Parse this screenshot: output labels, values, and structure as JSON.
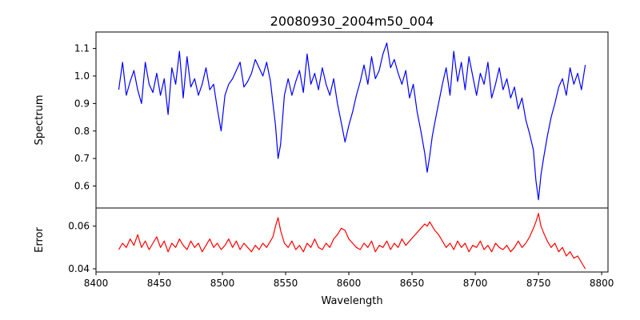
{
  "figure": {
    "title": "20080930_2004m50_004"
  },
  "chart_data": [
    {
      "type": "line",
      "panel": "top",
      "title": "20080930_2004m50_004",
      "xlabel": "",
      "ylabel": "Spectrum",
      "xlim": [
        8400,
        8805
      ],
      "ylim": [
        0.52,
        1.16
      ],
      "xticks": [],
      "yticks": [
        0.6,
        0.7,
        0.8,
        0.9,
        1.0,
        1.1
      ],
      "ytick_labels": [
        "0.6",
        "0.7",
        "0.8",
        "0.9",
        "1.0",
        "1.1"
      ],
      "grid": false,
      "series": [
        {
          "color": "#0000ff",
          "x": [
            8418,
            8421,
            8424,
            8427,
            8430,
            8433,
            8436,
            8439,
            8442,
            8445,
            8448,
            8451,
            8454,
            8457,
            8460,
            8463,
            8466,
            8469,
            8472,
            8475,
            8478,
            8481,
            8484,
            8487,
            8490,
            8493,
            8496,
            8499,
            8502,
            8505,
            8508,
            8511,
            8514,
            8517,
            8520,
            8523,
            8526,
            8529,
            8532,
            8535,
            8538,
            8540,
            8542,
            8544,
            8546,
            8549,
            8552,
            8555,
            8558,
            8561,
            8564,
            8567,
            8570,
            8573,
            8576,
            8579,
            8582,
            8585,
            8588,
            8591,
            8594,
            8597,
            8600,
            8603,
            8606,
            8609,
            8612,
            8615,
            8618,
            8621,
            8624,
            8627,
            8630,
            8633,
            8636,
            8639,
            8642,
            8645,
            8648,
            8651,
            8654,
            8657,
            8660,
            8662,
            8664,
            8666,
            8668,
            8671,
            8674,
            8677,
            8680,
            8683,
            8686,
            8689,
            8692,
            8695,
            8698,
            8701,
            8704,
            8707,
            8710,
            8713,
            8716,
            8719,
            8722,
            8725,
            8728,
            8731,
            8734,
            8737,
            8740,
            8743,
            8746,
            8748,
            8750,
            8752,
            8754,
            8757,
            8760,
            8763,
            8766,
            8769,
            8772,
            8775,
            8778,
            8781,
            8784,
            8787
          ],
          "y": [
            0.95,
            1.05,
            0.93,
            0.98,
            1.02,
            0.95,
            0.9,
            1.05,
            0.97,
            0.94,
            1.01,
            0.93,
            0.99,
            0.86,
            1.03,
            0.97,
            1.09,
            0.92,
            1.07,
            0.96,
            0.99,
            0.93,
            0.97,
            1.03,
            0.95,
            0.97,
            0.88,
            0.8,
            0.93,
            0.97,
            0.99,
            1.02,
            1.05,
            0.96,
            0.98,
            1.01,
            1.06,
            1.03,
            1.0,
            1.05,
            0.98,
            0.9,
            0.82,
            0.7,
            0.75,
            0.93,
            0.99,
            0.93,
            0.98,
            1.02,
            0.94,
            1.08,
            0.97,
            1.01,
            0.95,
            1.03,
            0.97,
            0.93,
            0.99,
            0.9,
            0.83,
            0.76,
            0.82,
            0.87,
            0.93,
            0.98,
            1.04,
            0.97,
            1.07,
            0.99,
            1.02,
            1.08,
            1.12,
            1.03,
            1.06,
            1.01,
            0.97,
            1.02,
            0.92,
            0.97,
            0.87,
            0.8,
            0.72,
            0.65,
            0.71,
            0.78,
            0.83,
            0.9,
            0.97,
            1.03,
            0.93,
            1.09,
            0.98,
            1.05,
            0.95,
            1.07,
            1.0,
            0.93,
            1.01,
            0.97,
            1.05,
            0.92,
            0.97,
            1.03,
            0.95,
            0.99,
            0.92,
            0.96,
            0.88,
            0.92,
            0.84,
            0.79,
            0.73,
            0.62,
            0.55,
            0.64,
            0.7,
            0.78,
            0.85,
            0.9,
            0.96,
            0.99,
            0.93,
            1.03,
            0.97,
            1.01,
            0.95,
            1.04
          ]
        }
      ]
    },
    {
      "type": "line",
      "panel": "bottom",
      "title": "",
      "xlabel": "Wavelength",
      "ylabel": "Error",
      "xlim": [
        8400,
        8805
      ],
      "ylim": [
        0.0385,
        0.0685
      ],
      "xticks": [
        8400,
        8450,
        8500,
        8550,
        8600,
        8650,
        8700,
        8750,
        8800
      ],
      "xtick_labels": [
        "8400",
        "8450",
        "8500",
        "8550",
        "8600",
        "8650",
        "8700",
        "8750",
        "8800"
      ],
      "yticks": [
        0.04,
        0.06
      ],
      "ytick_labels": [
        "0.04",
        "0.06"
      ],
      "grid": false,
      "series": [
        {
          "color": "#ff0000",
          "x": [
            8418,
            8421,
            8424,
            8427,
            8430,
            8433,
            8436,
            8439,
            8442,
            8445,
            8448,
            8451,
            8454,
            8457,
            8460,
            8463,
            8466,
            8469,
            8472,
            8475,
            8478,
            8481,
            8484,
            8487,
            8490,
            8493,
            8496,
            8499,
            8502,
            8505,
            8508,
            8511,
            8514,
            8517,
            8520,
            8523,
            8526,
            8529,
            8532,
            8535,
            8538,
            8540,
            8542,
            8544,
            8546,
            8549,
            8552,
            8555,
            8558,
            8561,
            8564,
            8567,
            8570,
            8573,
            8576,
            8579,
            8582,
            8585,
            8588,
            8591,
            8594,
            8597,
            8600,
            8603,
            8606,
            8609,
            8612,
            8615,
            8618,
            8621,
            8624,
            8627,
            8630,
            8633,
            8636,
            8639,
            8642,
            8645,
            8648,
            8651,
            8654,
            8657,
            8660,
            8662,
            8664,
            8666,
            8668,
            8671,
            8674,
            8677,
            8680,
            8683,
            8686,
            8689,
            8692,
            8695,
            8698,
            8701,
            8704,
            8707,
            8710,
            8713,
            8716,
            8719,
            8722,
            8725,
            8728,
            8731,
            8734,
            8737,
            8740,
            8743,
            8746,
            8748,
            8750,
            8752,
            8754,
            8757,
            8760,
            8763,
            8766,
            8769,
            8772,
            8775,
            8778,
            8781,
            8784,
            8787
          ],
          "y": [
            0.049,
            0.052,
            0.05,
            0.054,
            0.051,
            0.056,
            0.05,
            0.053,
            0.049,
            0.052,
            0.055,
            0.05,
            0.053,
            0.048,
            0.052,
            0.05,
            0.054,
            0.051,
            0.049,
            0.053,
            0.05,
            0.052,
            0.048,
            0.051,
            0.054,
            0.05,
            0.052,
            0.049,
            0.051,
            0.054,
            0.05,
            0.053,
            0.049,
            0.052,
            0.05,
            0.048,
            0.051,
            0.049,
            0.052,
            0.05,
            0.053,
            0.055,
            0.06,
            0.064,
            0.058,
            0.052,
            0.05,
            0.053,
            0.049,
            0.051,
            0.048,
            0.052,
            0.05,
            0.054,
            0.05,
            0.049,
            0.052,
            0.05,
            0.054,
            0.056,
            0.059,
            0.058,
            0.054,
            0.052,
            0.05,
            0.049,
            0.052,
            0.05,
            0.053,
            0.048,
            0.051,
            0.05,
            0.053,
            0.049,
            0.052,
            0.05,
            0.054,
            0.051,
            0.053,
            0.055,
            0.057,
            0.059,
            0.061,
            0.06,
            0.062,
            0.06,
            0.058,
            0.056,
            0.053,
            0.05,
            0.052,
            0.049,
            0.053,
            0.05,
            0.052,
            0.048,
            0.051,
            0.05,
            0.053,
            0.049,
            0.051,
            0.048,
            0.052,
            0.05,
            0.049,
            0.051,
            0.048,
            0.05,
            0.053,
            0.05,
            0.052,
            0.055,
            0.059,
            0.062,
            0.066,
            0.06,
            0.057,
            0.053,
            0.05,
            0.052,
            0.048,
            0.05,
            0.046,
            0.048,
            0.045,
            0.046,
            0.043,
            0.04
          ]
        }
      ]
    }
  ]
}
